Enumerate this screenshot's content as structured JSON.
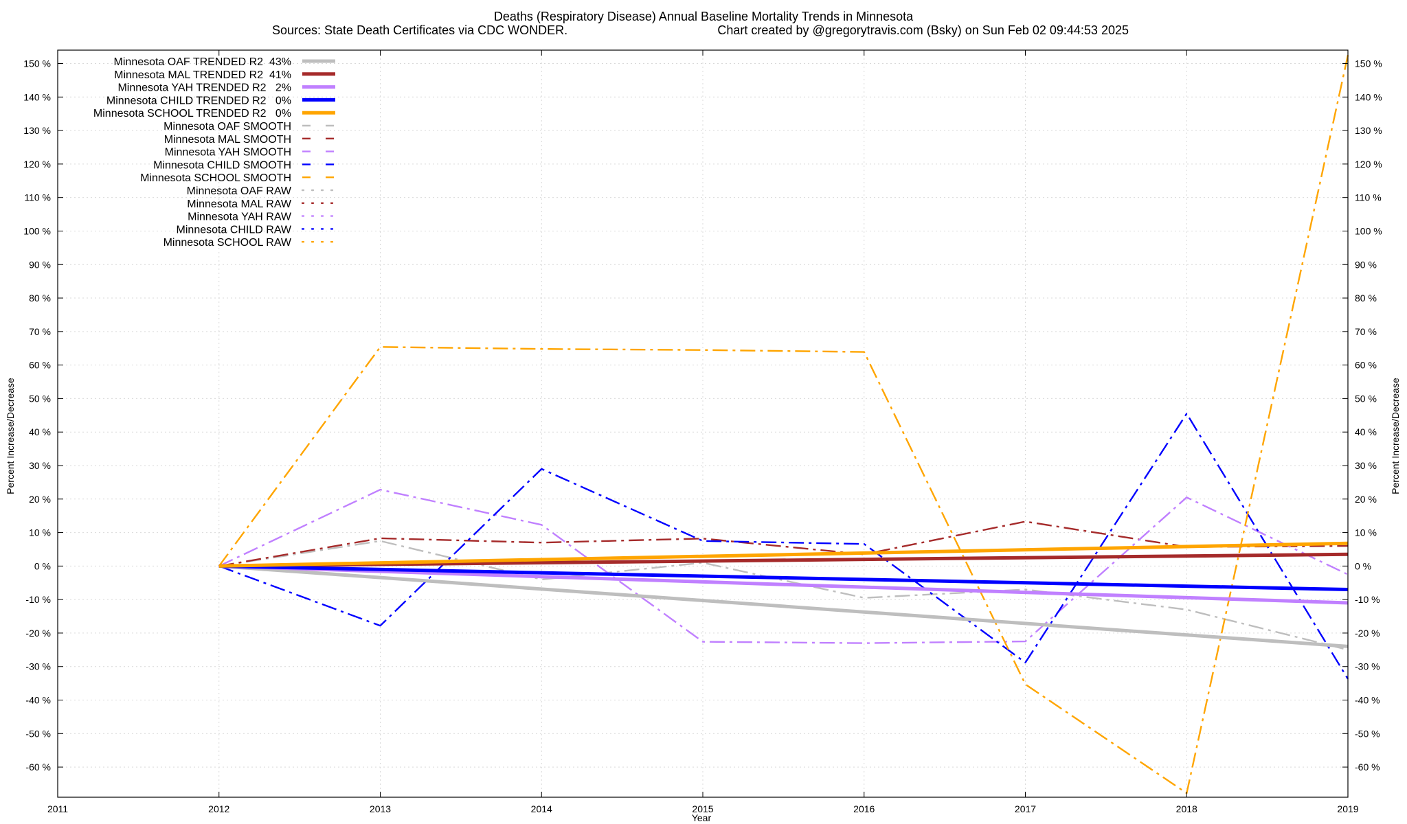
{
  "chart_data": {
    "type": "line",
    "title": "Deaths (Respiratory Disease)  Annual Baseline Mortality Trends in Minnesota",
    "subtitle_left": "Sources: State Death Certificates via CDC WONDER.",
    "subtitle_right": "Chart created by @gregorytravis.com (Bsky) on Sun Feb 02 09:44:53 2025",
    "xlabel": "Year",
    "ylabel_left": "Percent Increase/Decrease",
    "ylabel_right": "Percent Increase/Decrease",
    "xlim": [
      2011,
      2019
    ],
    "ylim": [
      -69,
      154
    ],
    "x_ticks": [
      2011,
      2012,
      2013,
      2014,
      2015,
      2016,
      2017,
      2018,
      2019
    ],
    "x_tick_labels": [
      "2011",
      "2012",
      "2013",
      "2014",
      "2015",
      "2016",
      "2017",
      "2018",
      "2019"
    ],
    "y_ticks": [
      -60,
      -50,
      -40,
      -30,
      -20,
      -10,
      0,
      10,
      20,
      30,
      40,
      50,
      60,
      70,
      80,
      90,
      100,
      110,
      120,
      130,
      140,
      150
    ],
    "y_tick_labels": [
      "-60 %",
      "-50 %",
      "-40 %",
      "-30 %",
      "-20 %",
      "-10 %",
      "0 %",
      "10 %",
      "20 %",
      "30 %",
      "40 %",
      "50 %",
      "60 %",
      "70 %",
      "80 %",
      "90 %",
      "100 %",
      "110 %",
      "120 %",
      "130 %",
      "140 %",
      "150 %"
    ],
    "grid": true,
    "legend_position": "top-left",
    "series": [
      {
        "name": "Minnesota OAF TRENDED R2  43%",
        "style": "trend",
        "color": "#bebebe",
        "x": [
          2012,
          2019
        ],
        "y": [
          0,
          -24
        ]
      },
      {
        "name": "Minnesota MAL TRENDED R2  41%",
        "style": "trend",
        "color": "#a52a2a",
        "x": [
          2012,
          2019
        ],
        "y": [
          0,
          3.5
        ]
      },
      {
        "name": "Minnesota YAH TRENDED R2   2%",
        "style": "trend",
        "color": "#c080ff",
        "x": [
          2012,
          2019
        ],
        "y": [
          0,
          -11
        ]
      },
      {
        "name": "Minnesota CHILD TRENDED R2   0%",
        "style": "trend",
        "color": "#0000ff",
        "x": [
          2012,
          2019
        ],
        "y": [
          0,
          -7
        ]
      },
      {
        "name": "Minnesota SCHOOL TRENDED R2   0%",
        "style": "trend",
        "color": "#ffa500",
        "x": [
          2012,
          2019
        ],
        "y": [
          0,
          6.8
        ]
      },
      {
        "name": "Minnesota OAF SMOOTH",
        "style": "smooth",
        "color": "#bebebe",
        "x": [
          2012,
          2013,
          2014,
          2015,
          2016,
          2017,
          2018,
          2019
        ],
        "y": [
          0,
          7.5,
          -4,
          1,
          -9.5,
          -7,
          -13,
          -25
        ]
      },
      {
        "name": "Minnesota MAL SMOOTH",
        "style": "smooth",
        "color": "#a52a2a",
        "x": [
          2012,
          2013,
          2014,
          2015,
          2016,
          2017,
          2018,
          2019
        ],
        "y": [
          0,
          8.3,
          7,
          8.2,
          3.5,
          13.3,
          5.7,
          6
        ]
      },
      {
        "name": "Minnesota YAH SMOOTH",
        "style": "smooth",
        "color": "#c080ff",
        "x": [
          2012,
          2013,
          2014,
          2015,
          2016,
          2017,
          2018,
          2019
        ],
        "y": [
          0,
          22.8,
          12.3,
          -22.6,
          -23,
          -22.5,
          20.5,
          -2.5
        ]
      },
      {
        "name": "Minnesota CHILD SMOOTH",
        "style": "smooth",
        "color": "#0000ff",
        "x": [
          2012,
          2013,
          2014,
          2015,
          2016,
          2017,
          2018,
          2019
        ],
        "y": [
          0,
          -17.8,
          29,
          7.5,
          6.6,
          -28.8,
          45.5,
          -33.7
        ]
      },
      {
        "name": "Minnesota SCHOOL SMOOTH",
        "style": "smooth",
        "color": "#ffa500",
        "x": [
          2012,
          2013,
          2014,
          2015,
          2016,
          2017,
          2018,
          2019
        ],
        "y": [
          0,
          65.4,
          64.8,
          64.5,
          63.9,
          -35.3,
          -67.8,
          152.5
        ]
      },
      {
        "name": "Minnesota OAF RAW",
        "style": "raw",
        "color": "#bebebe",
        "x": [],
        "y": []
      },
      {
        "name": "Minnesota MAL RAW",
        "style": "raw",
        "color": "#a52a2a",
        "x": [],
        "y": []
      },
      {
        "name": "Minnesota YAH RAW",
        "style": "raw",
        "color": "#c080ff",
        "x": [],
        "y": []
      },
      {
        "name": "Minnesota CHILD RAW",
        "style": "raw",
        "color": "#0000ff",
        "x": [],
        "y": []
      },
      {
        "name": "Minnesota SCHOOL RAW",
        "style": "raw",
        "color": "#ffa500",
        "x": [],
        "y": []
      }
    ]
  }
}
